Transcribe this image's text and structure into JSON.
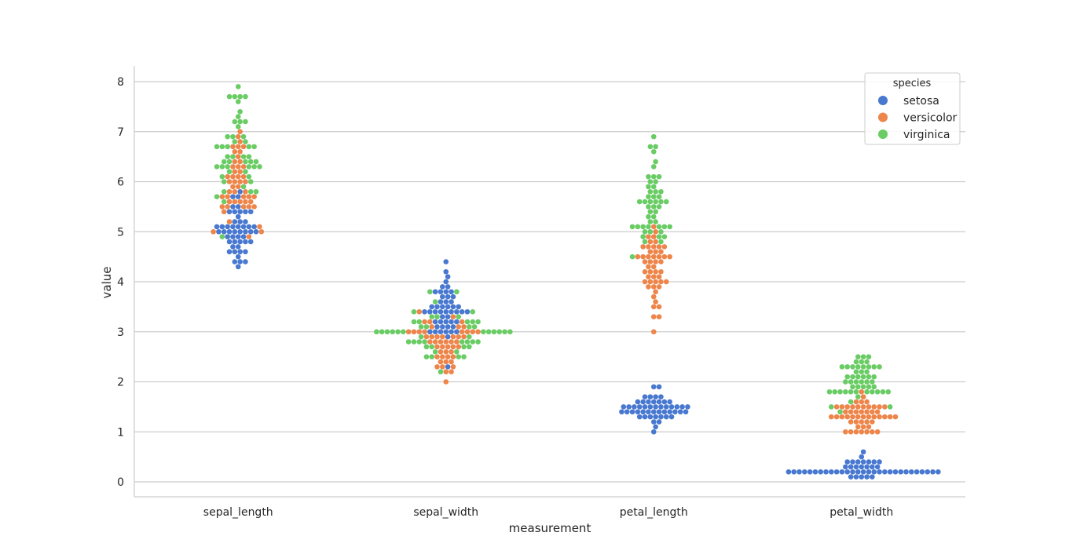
{
  "chart_data": {
    "type": "scatter",
    "kind": "swarm",
    "xlabel": "measurement",
    "ylabel": "value",
    "categories": [
      "sepal_length",
      "sepal_width",
      "petal_length",
      "petal_width"
    ],
    "yticks": [
      0,
      1,
      2,
      3,
      4,
      5,
      6,
      7,
      8
    ],
    "ylim": [
      -0.3,
      8.3
    ],
    "grid": "horizontal",
    "legend": {
      "title": "species",
      "position": "top-right"
    },
    "series": [
      {
        "name": "setosa",
        "color": "#4878d0",
        "values": {
          "sepal_length": [
            5.1,
            4.9,
            4.7,
            4.6,
            5.0,
            5.4,
            4.6,
            5.0,
            4.4,
            4.9,
            5.4,
            4.8,
            4.8,
            4.3,
            5.8,
            5.7,
            5.4,
            5.1,
            5.7,
            5.1,
            5.4,
            5.1,
            4.6,
            5.1,
            4.8,
            5.0,
            5.0,
            5.2,
            5.2,
            4.7,
            4.8,
            5.4,
            5.2,
            5.5,
            4.9,
            5.0,
            5.5,
            4.9,
            4.4,
            5.1,
            5.0,
            4.5,
            4.4,
            5.0,
            5.1,
            4.8,
            5.1,
            4.6,
            5.3,
            5.0
          ],
          "sepal_width": [
            3.5,
            3.0,
            3.2,
            3.1,
            3.6,
            3.9,
            3.4,
            3.4,
            2.9,
            3.1,
            3.7,
            3.4,
            3.0,
            3.0,
            4.0,
            4.4,
            3.9,
            3.5,
            3.8,
            3.8,
            3.4,
            3.7,
            3.6,
            3.3,
            3.4,
            3.0,
            3.4,
            3.5,
            3.4,
            3.2,
            3.1,
            3.4,
            4.1,
            4.2,
            3.1,
            3.2,
            3.5,
            3.6,
            3.0,
            3.4,
            3.5,
            2.3,
            3.2,
            3.5,
            3.8,
            3.0,
            3.8,
            3.2,
            3.7,
            3.3
          ],
          "petal_length": [
            1.4,
            1.4,
            1.3,
            1.5,
            1.4,
            1.7,
            1.4,
            1.5,
            1.4,
            1.5,
            1.5,
            1.6,
            1.4,
            1.1,
            1.2,
            1.5,
            1.3,
            1.4,
            1.7,
            1.5,
            1.7,
            1.5,
            1.0,
            1.7,
            1.9,
            1.6,
            1.6,
            1.5,
            1.4,
            1.6,
            1.6,
            1.5,
            1.5,
            1.4,
            1.5,
            1.2,
            1.3,
            1.4,
            1.3,
            1.5,
            1.3,
            1.3,
            1.3,
            1.6,
            1.9,
            1.4,
            1.6,
            1.4,
            1.5,
            1.4
          ],
          "petal_width": [
            0.2,
            0.2,
            0.2,
            0.2,
            0.2,
            0.4,
            0.3,
            0.2,
            0.2,
            0.1,
            0.2,
            0.2,
            0.1,
            0.1,
            0.2,
            0.4,
            0.4,
            0.3,
            0.3,
            0.3,
            0.2,
            0.4,
            0.2,
            0.5,
            0.2,
            0.2,
            0.4,
            0.2,
            0.2,
            0.2,
            0.2,
            0.4,
            0.1,
            0.2,
            0.2,
            0.2,
            0.2,
            0.1,
            0.2,
            0.2,
            0.3,
            0.3,
            0.2,
            0.6,
            0.4,
            0.3,
            0.2,
            0.2,
            0.2,
            0.2
          ]
        }
      },
      {
        "name": "versicolor",
        "color": "#ee854a",
        "values": {
          "sepal_length": [
            7.0,
            6.4,
            6.9,
            5.5,
            6.5,
            5.7,
            6.3,
            4.9,
            6.6,
            5.2,
            5.0,
            5.9,
            6.0,
            6.1,
            5.6,
            6.7,
            5.6,
            5.8,
            6.2,
            5.6,
            5.9,
            6.1,
            6.3,
            6.1,
            6.4,
            6.6,
            6.8,
            6.7,
            6.0,
            5.7,
            5.5,
            5.5,
            5.8,
            6.0,
            5.4,
            6.0,
            6.7,
            6.3,
            5.6,
            5.5,
            5.5,
            6.1,
            5.8,
            5.0,
            5.6,
            5.7,
            5.7,
            6.2,
            5.1,
            5.7
          ],
          "sepal_width": [
            3.2,
            3.2,
            3.1,
            2.3,
            2.8,
            2.8,
            3.3,
            2.4,
            2.9,
            2.7,
            2.0,
            3.0,
            2.2,
            2.9,
            2.9,
            3.1,
            3.0,
            2.7,
            2.2,
            2.5,
            3.2,
            2.8,
            2.5,
            2.8,
            2.9,
            3.0,
            2.8,
            3.0,
            2.9,
            2.6,
            2.4,
            2.4,
            2.7,
            2.7,
            3.0,
            3.4,
            3.1,
            2.3,
            3.0,
            2.5,
            2.6,
            3.0,
            2.6,
            2.3,
            2.7,
            3.0,
            2.9,
            2.9,
            2.5,
            2.8
          ],
          "petal_length": [
            4.7,
            4.5,
            4.9,
            4.0,
            4.6,
            4.5,
            4.7,
            3.3,
            4.6,
            3.9,
            3.5,
            4.2,
            4.0,
            4.7,
            3.6,
            4.4,
            4.5,
            4.1,
            4.5,
            3.9,
            4.8,
            4.0,
            4.9,
            4.7,
            4.3,
            4.4,
            4.8,
            5.0,
            4.5,
            3.5,
            3.8,
            3.7,
            3.9,
            5.1,
            4.5,
            4.5,
            4.7,
            4.4,
            4.1,
            4.0,
            4.4,
            4.6,
            4.0,
            3.3,
            4.2,
            4.2,
            4.2,
            4.3,
            3.0,
            4.1
          ],
          "petal_width": [
            1.4,
            1.5,
            1.5,
            1.3,
            1.5,
            1.3,
            1.6,
            1.0,
            1.3,
            1.4,
            1.0,
            1.5,
            1.0,
            1.4,
            1.3,
            1.4,
            1.5,
            1.0,
            1.5,
            1.1,
            1.8,
            1.3,
            1.5,
            1.2,
            1.3,
            1.4,
            1.4,
            1.7,
            1.5,
            1.0,
            1.1,
            1.0,
            1.2,
            1.6,
            1.5,
            1.6,
            1.5,
            1.3,
            1.3,
            1.3,
            1.2,
            1.4,
            1.2,
            1.0,
            1.3,
            1.2,
            1.3,
            1.3,
            1.1,
            1.3
          ]
        }
      },
      {
        "name": "virginica",
        "color": "#6acc64",
        "values": {
          "sepal_length": [
            6.3,
            5.8,
            7.1,
            6.3,
            6.5,
            7.6,
            4.9,
            7.3,
            6.7,
            7.2,
            6.5,
            6.4,
            6.8,
            5.7,
            5.8,
            6.4,
            6.5,
            7.7,
            7.7,
            6.0,
            6.9,
            5.6,
            7.7,
            6.3,
            6.7,
            7.2,
            6.2,
            6.1,
            6.4,
            7.2,
            7.4,
            7.9,
            6.4,
            6.3,
            6.1,
            7.7,
            6.3,
            6.4,
            6.0,
            6.9,
            6.7,
            6.9,
            5.8,
            6.8,
            6.7,
            6.7,
            6.3,
            6.5,
            6.2,
            5.9
          ],
          "sepal_width": [
            3.3,
            2.7,
            3.0,
            2.9,
            3.0,
            3.0,
            2.5,
            2.9,
            2.5,
            3.6,
            3.2,
            2.7,
            3.0,
            2.5,
            2.8,
            3.2,
            3.0,
            3.8,
            2.6,
            2.2,
            3.2,
            2.8,
            2.8,
            2.7,
            3.3,
            3.2,
            2.8,
            3.0,
            2.8,
            3.0,
            2.8,
            3.8,
            2.8,
            2.8,
            2.6,
            3.0,
            3.4,
            3.1,
            3.0,
            3.1,
            3.1,
            3.1,
            2.7,
            3.2,
            3.3,
            3.0,
            2.5,
            3.0,
            3.4,
            3.0
          ],
          "petal_length": [
            6.0,
            5.1,
            5.9,
            5.6,
            5.8,
            6.6,
            4.5,
            6.3,
            5.8,
            6.1,
            5.1,
            5.3,
            5.5,
            5.0,
            5.1,
            5.3,
            5.5,
            6.7,
            6.9,
            5.0,
            5.7,
            4.9,
            6.7,
            4.9,
            5.7,
            6.0,
            4.8,
            4.9,
            5.6,
            5.8,
            6.1,
            6.4,
            5.6,
            5.1,
            5.6,
            6.1,
            5.6,
            5.5,
            4.8,
            5.4,
            5.6,
            5.1,
            5.1,
            5.9,
            5.7,
            5.2,
            5.0,
            5.2,
            5.4,
            5.1
          ],
          "petal_width": [
            2.5,
            1.9,
            2.1,
            1.8,
            2.2,
            2.1,
            1.7,
            1.8,
            1.8,
            2.5,
            2.0,
            1.9,
            2.1,
            2.0,
            2.4,
            2.3,
            1.8,
            2.2,
            2.3,
            1.5,
            2.3,
            2.0,
            2.0,
            1.8,
            2.1,
            1.8,
            1.8,
            1.8,
            2.1,
            1.6,
            1.9,
            2.0,
            2.2,
            1.5,
            1.4,
            2.3,
            2.4,
            1.8,
            1.8,
            2.1,
            2.4,
            2.3,
            1.9,
            2.3,
            2.5,
            2.3,
            1.9,
            2.0,
            2.3,
            1.8
          ]
        }
      }
    ]
  }
}
